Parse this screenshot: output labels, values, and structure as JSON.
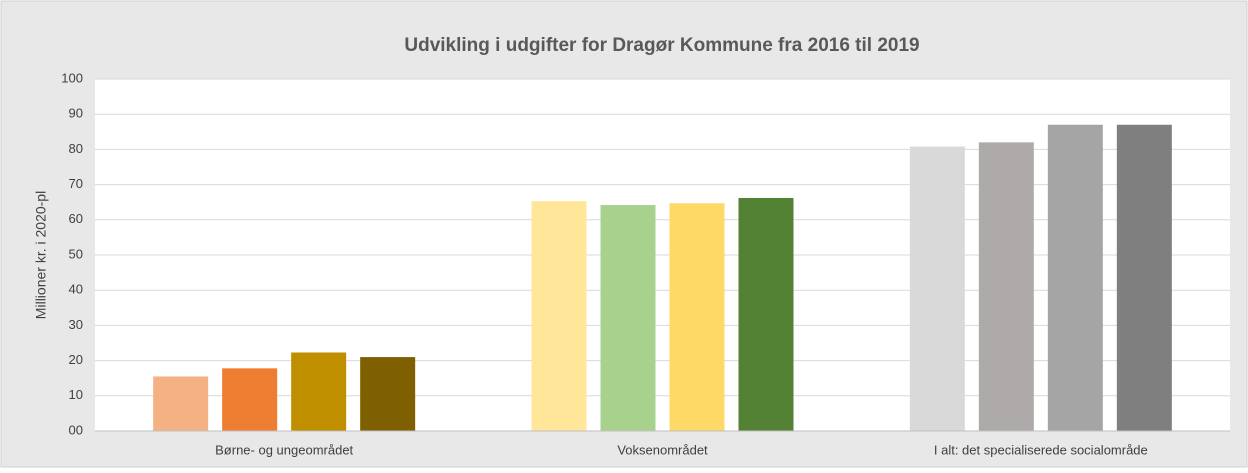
{
  "chart_data": {
    "type": "bar",
    "title": "Udvikling i udgifter for Dragør Kommune fra 2016 til 2019",
    "y_label": "Millioner kr. i 2020-pl",
    "categories": [
      "Børne- og ungeområdet",
      "Voksenområdet",
      "I alt: det specialiserede socialområde"
    ],
    "series": [
      {
        "colors": [
          "#f4b183",
          "#ffe699",
          "#d9d9d9"
        ],
        "values": [
          15.5,
          65.3,
          80.8
        ]
      },
      {
        "colors": [
          "#ed7d31",
          "#a9d18e",
          "#aeaaaa"
        ],
        "values": [
          17.8,
          64.2,
          82
        ]
      },
      {
        "colors": [
          "#bf8f00",
          "#ffd966",
          "#a5a5a5"
        ],
        "values": [
          22.3,
          64.7,
          87
        ]
      },
      {
        "colors": [
          "#7f6000",
          "#548235",
          "#7f7f7f"
        ],
        "values": [
          21,
          66.2,
          87
        ]
      }
    ],
    "ylim": [
      0,
      100
    ],
    "yticks": [
      {
        "value": 0,
        "label": "00"
      },
      10,
      20,
      30,
      40,
      50,
      60,
      70,
      80,
      90,
      100
    ],
    "grid": true
  }
}
